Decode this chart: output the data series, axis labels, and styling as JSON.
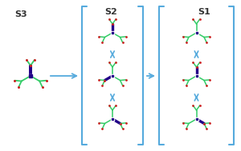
{
  "bg_color": "#ffffff",
  "bracket_color": "#55AADD",
  "arrow_color": "#55AADD",
  "label_color": "#333333",
  "s3_label": "S3",
  "s2_label": "S2",
  "s1_label": "S1",
  "branch_green": "#33CC66",
  "branch_dark": "#220088",
  "branch_red": "#CC2222",
  "branch_highlight": "#0000CC"
}
